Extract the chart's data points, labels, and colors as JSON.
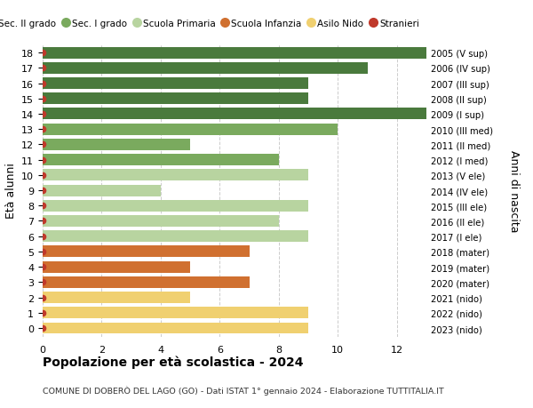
{
  "ages": [
    18,
    17,
    16,
    15,
    14,
    13,
    12,
    11,
    10,
    9,
    8,
    7,
    6,
    5,
    4,
    3,
    2,
    1,
    0
  ],
  "right_labels": [
    "2005 (V sup)",
    "2006 (IV sup)",
    "2007 (III sup)",
    "2008 (II sup)",
    "2009 (I sup)",
    "2010 (III med)",
    "2011 (II med)",
    "2012 (I med)",
    "2013 (V ele)",
    "2014 (IV ele)",
    "2015 (III ele)",
    "2016 (II ele)",
    "2017 (I ele)",
    "2018 (mater)",
    "2019 (mater)",
    "2020 (mater)",
    "2021 (nido)",
    "2022 (nido)",
    "2023 (nido)"
  ],
  "values": [
    13,
    11,
    9,
    9,
    13,
    10,
    5,
    8,
    9,
    4,
    9,
    8,
    9,
    7,
    5,
    7,
    5,
    9,
    9
  ],
  "bar_colors": [
    "#4a7a3d",
    "#4a7a3d",
    "#4a7a3d",
    "#4a7a3d",
    "#4a7a3d",
    "#7aaa5e",
    "#7aaa5e",
    "#7aaa5e",
    "#b8d4a0",
    "#b8d4a0",
    "#b8d4a0",
    "#b8d4a0",
    "#b8d4a0",
    "#d07030",
    "#d07030",
    "#d07030",
    "#f0d070",
    "#f0d070",
    "#f0d070"
  ],
  "stranieri_marker_color": "#c0392b",
  "title": "Popolazione per età scolastica - 2024",
  "subtitle": "COMUNE DI DOBERÒ DEL LAGO (GO) - Dati ISTAT 1° gennaio 2024 - Elaborazione TUTTITALIA.IT",
  "ylabel_left": "Età alunni",
  "ylabel_right": "Anni di nascita",
  "xlim": [
    0,
    13
  ],
  "xticks": [
    0,
    2,
    4,
    6,
    8,
    10,
    12
  ],
  "legend_labels": [
    "Sec. II grado",
    "Sec. I grado",
    "Scuola Primaria",
    "Scuola Infanzia",
    "Asilo Nido",
    "Stranieri"
  ],
  "legend_colors": [
    "#4a7a3d",
    "#7aaa5e",
    "#b8d4a0",
    "#d07030",
    "#f0d070",
    "#c0392b"
  ],
  "bg_color": "#ffffff",
  "grid_color": "#cccccc",
  "bar_height": 0.75,
  "figsize": [
    6.0,
    4.6
  ],
  "dpi": 100
}
